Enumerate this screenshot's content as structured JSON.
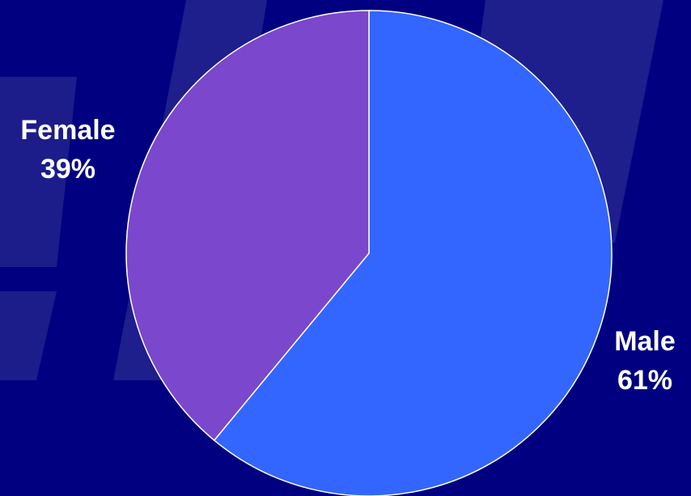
{
  "background_color": "#000080",
  "chart_data": {
    "type": "pie",
    "title": "",
    "slices": [
      {
        "name": "Male",
        "value": 61,
        "percent_label": "61%",
        "color": "#3366FF"
      },
      {
        "name": "Female",
        "value": 39,
        "percent_label": "39%",
        "color": "#7B47CC"
      }
    ],
    "start_angle": "12 o'clock",
    "direction": "clockwise",
    "slice_border_color": "#FFFFFF",
    "label_color": "#FFFFFF",
    "legend": "none"
  }
}
